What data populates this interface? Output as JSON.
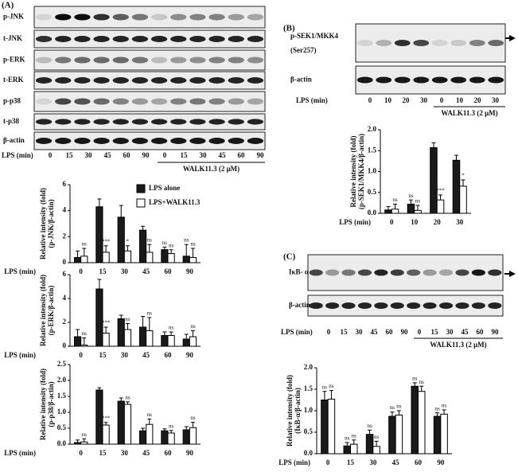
{
  "panel_labels": [
    "(A)",
    "(B)",
    "(C)"
  ],
  "blots": [
    {
      "rows": [
        {
          "label": "p-JNK"
        },
        {
          "label": "t-JNK"
        },
        {
          "label": "p-ERK"
        },
        {
          "label": "t-ERK"
        },
        {
          "label": "p-p38"
        },
        {
          "label": "t-p38"
        },
        {
          "label": "β-actin"
        }
      ],
      "lane_header": "LPS (min)",
      "lanes": [
        0,
        15,
        30,
        45,
        60,
        90,
        0,
        15,
        30,
        45,
        60,
        90
      ],
      "treatment": "WALK11.3 (2 μM)"
    },
    {
      "rows": [
        {
          "label": "p-SEK1/MKK4",
          "sublabel": "(Ser257)"
        },
        {
          "label": "β-actin"
        }
      ],
      "lane_header": "LPS (min)",
      "lanes": [
        0,
        10,
        20,
        30,
        0,
        10,
        20,
        30
      ],
      "treatment": "WALK11.3 (2 μM)"
    },
    {
      "rows": [
        {
          "label": "IκB- α"
        },
        {
          "label": "β-actin"
        }
      ],
      "lane_header": "LPS (min)",
      "lanes": [
        0,
        15,
        30,
        45,
        60,
        90,
        0,
        15,
        30,
        45,
        60,
        90
      ],
      "treatment": "WALK11.3 (2 μM)"
    }
  ],
  "chart_data": [
    {
      "type": "bar",
      "ylabel": [
        "Relative intensity (fold)",
        "(p-JNK/β-actin)"
      ],
      "xlabel": "LPS (min)",
      "categories": [
        0,
        15,
        30,
        45,
        60,
        90
      ],
      "ylim": [
        0,
        6
      ],
      "yticks": [
        0,
        2,
        4,
        6
      ],
      "legend": true,
      "series": [
        {
          "name": "LPS alone",
          "color": "#1a1a1a",
          "values": [
            0.4,
            4.3,
            3.5,
            2.5,
            1.0,
            0.5
          ],
          "errors": [
            0.5,
            0.6,
            0.9,
            0.3,
            0.2,
            0.9
          ],
          "significance": [
            null,
            null,
            null,
            null,
            "ns",
            "ns"
          ]
        },
        {
          "name": "LPS+WALK11.3",
          "color": "#ffffff",
          "values": [
            0.5,
            0.8,
            0.9,
            0.8,
            0.7,
            0.4
          ],
          "errors": [
            0.6,
            0.5,
            0.4,
            0.6,
            0.3,
            0.7
          ],
          "significance": [
            "ns",
            "***",
            "*",
            "ns",
            "ns",
            "ns"
          ]
        }
      ]
    },
    {
      "type": "bar",
      "ylabel": [
        "Relative intensity (fold)",
        "(p-ERK/β-actin)"
      ],
      "xlabel": "LPS (min)",
      "categories": [
        0,
        15,
        30,
        45,
        60,
        90
      ],
      "ylim": [
        0,
        6
      ],
      "yticks": [
        0,
        2,
        4,
        6
      ],
      "series": [
        {
          "color": "#1a1a1a",
          "values": [
            0.8,
            4.8,
            2.3,
            1.6,
            0.9,
            0.6
          ],
          "errors": [
            0.6,
            0.8,
            0.3,
            0.9,
            0.3,
            0.4
          ],
          "significance": [
            null,
            null,
            null,
            null,
            null,
            null
          ]
        },
        {
          "color": "#ffffff",
          "values": [
            0.1,
            1.1,
            1.4,
            1.3,
            0.9,
            0.8
          ],
          "errors": [
            0.6,
            0.5,
            0.5,
            1.1,
            0.3,
            0.5
          ],
          "significance": [
            "ns",
            "***",
            "ns",
            "ns",
            "ns",
            "ns"
          ]
        }
      ]
    },
    {
      "type": "bar",
      "ylabel": [
        "Relative intensity (fold)",
        "(p-p38/β-actin)"
      ],
      "xlabel": "LPS (min)",
      "categories": [
        0,
        15,
        30,
        45,
        60,
        90
      ],
      "ylim": [
        0,
        2.5
      ],
      "yticks": [
        {
          "value": 0,
          "label": "0.0"
        },
        0.5,
        {
          "value": 1,
          "label": "1.0"
        },
        1.5,
        {
          "value": 2,
          "label": "2.0"
        },
        2.5
      ],
      "series": [
        {
          "color": "#1a1a1a",
          "values": [
            0.05,
            1.7,
            1.35,
            0.42,
            0.42,
            0.45
          ],
          "errors": [
            0.08,
            0.07,
            0.1,
            0.08,
            0.06,
            0.1
          ],
          "significance": [
            null,
            null,
            null,
            null,
            null,
            null
          ]
        },
        {
          "color": "#ffffff",
          "values": [
            0.07,
            0.6,
            1.25,
            0.62,
            0.35,
            0.52
          ],
          "errors": [
            0.1,
            0.08,
            0.08,
            0.17,
            0.08,
            0.17
          ],
          "significance": [
            "ns",
            "***",
            "ns",
            "ns",
            "ns",
            "ns"
          ]
        }
      ]
    },
    {
      "type": "bar",
      "ylabel": [
        "Relative intensity (fold)",
        "(p-SEK1/MKK4/β-actin)"
      ],
      "xlabel": "LPS (min)",
      "categories": [
        0,
        10,
        20,
        30
      ],
      "ylim": [
        0,
        2
      ],
      "yticks": [
        {
          "value": 0,
          "label": "0.0"
        },
        0.5,
        {
          "value": 1,
          "label": "1.0"
        },
        1.5,
        {
          "value": 2,
          "label": "2.0"
        }
      ],
      "series": [
        {
          "color": "#1a1a1a",
          "values": [
            0.08,
            0.22,
            1.57,
            1.27
          ],
          "errors": [
            0.08,
            0.1,
            0.12,
            0.12
          ],
          "significance": [
            null,
            "ns",
            null,
            null
          ]
        },
        {
          "color": "#ffffff",
          "values": [
            0.1,
            0.07,
            0.32,
            0.65
          ],
          "errors": [
            0.12,
            0.12,
            0.12,
            0.15
          ],
          "significance": [
            "ns",
            "ns",
            "***",
            "*"
          ]
        }
      ]
    },
    {
      "type": "bar",
      "ylabel": [
        "Relative intensity (fold)",
        "(IκB-α/β-actin)"
      ],
      "xlabel": "LPS (min)",
      "categories": [
        0,
        15,
        30,
        45,
        60,
        90
      ],
      "ylim": [
        0,
        2
      ],
      "yticks": [
        {
          "value": 0,
          "label": "0.0"
        },
        0.5,
        {
          "value": 1,
          "label": "1.0"
        },
        1.5,
        {
          "value": 2,
          "label": "2.0"
        }
      ],
      "series": [
        {
          "color": "#1a1a1a",
          "values": [
            1.25,
            0.18,
            0.45,
            0.87,
            1.57,
            0.87
          ],
          "errors": [
            0.2,
            0.08,
            0.1,
            0.1,
            0.08,
            0.08
          ],
          "significance": [
            "ns",
            "ns",
            "ns",
            "ns",
            "ns",
            "ns"
          ]
        },
        {
          "color": "#ffffff",
          "values": [
            1.27,
            0.22,
            0.17,
            0.9,
            1.45,
            0.92
          ],
          "errors": [
            0.2,
            0.1,
            0.12,
            0.1,
            0.12,
            0.1
          ],
          "significance": [
            "ns",
            "ns",
            "ns",
            "ns",
            "ns",
            "ns"
          ]
        }
      ]
    }
  ]
}
